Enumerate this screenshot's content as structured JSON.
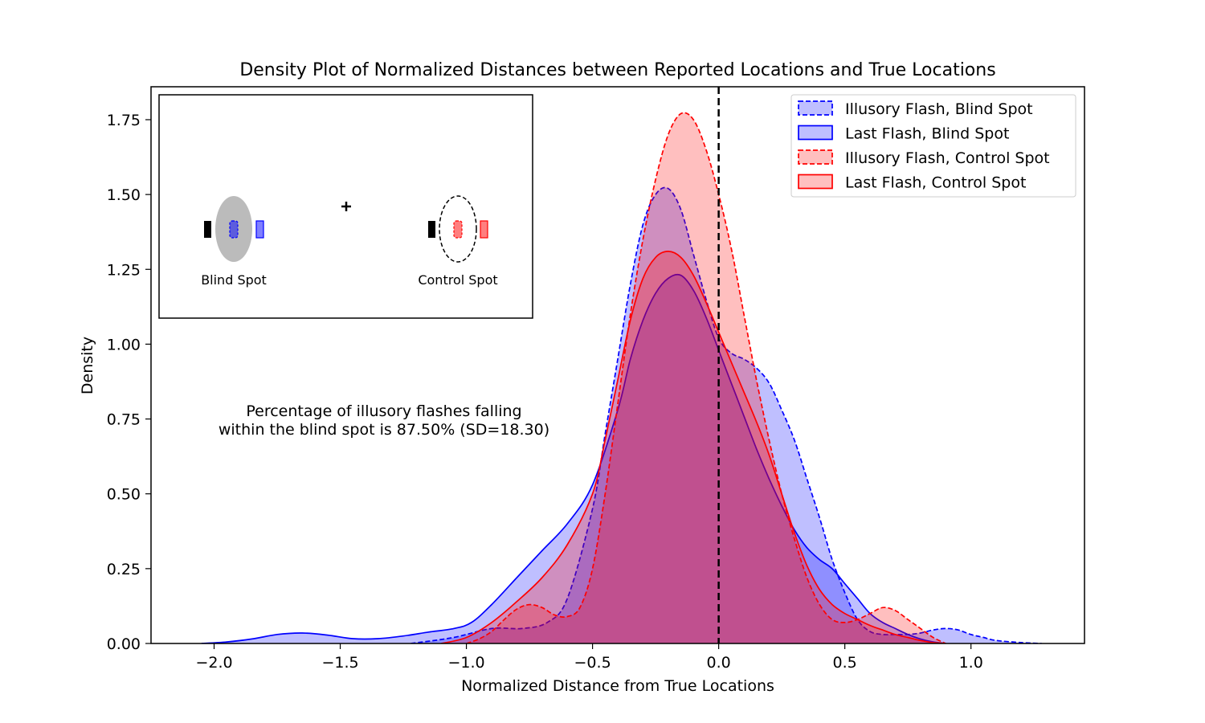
{
  "chart_data": {
    "type": "area",
    "title": "Density Plot of Normalized Distances between Reported Locations and True Locations",
    "xlabel": "Normalized Distance from True Locations",
    "ylabel": "Density",
    "xlim": [
      -2.25,
      1.45
    ],
    "ylim": [
      0,
      1.86
    ],
    "x_ticks": [
      -2.0,
      -1.5,
      -1.0,
      -0.5,
      0.0,
      0.5,
      1.0
    ],
    "x_tick_labels": [
      "−2.0",
      "−1.5",
      "−1.0",
      "−0.5",
      "0.0",
      "0.5",
      "1.0"
    ],
    "y_ticks": [
      0,
      0.25,
      0.5,
      0.75,
      1.0,
      1.25,
      1.5,
      1.75
    ],
    "y_tick_labels": [
      "0.00",
      "0.25",
      "0.50",
      "0.75",
      "1.00",
      "1.25",
      "1.50",
      "1.75"
    ],
    "grid": false,
    "legend_position": "top-right",
    "reference_line": {
      "x": 0.0,
      "style": "dashed",
      "color": "#000000"
    },
    "annotation": {
      "lines": [
        "Percentage of illusory flashes falling",
        "within the blind spot is 87.50% (SD=18.30)"
      ]
    },
    "series": [
      {
        "name": "Illusory Flash, Blind Spot",
        "color": "#0000ff",
        "line_style": "dashed",
        "x": [
          -1.22,
          -1.05,
          -0.9,
          -0.78,
          -0.68,
          -0.6,
          -0.5,
          -0.45,
          -0.4,
          -0.35,
          -0.3,
          -0.25,
          -0.2,
          -0.15,
          -0.1,
          -0.05,
          0.0,
          0.05,
          0.1,
          0.15,
          0.2,
          0.25,
          0.3,
          0.35,
          0.4,
          0.45,
          0.5,
          0.55,
          0.6,
          0.65,
          0.7,
          0.75,
          0.8,
          0.85,
          0.9,
          0.95,
          1.0,
          1.05,
          1.1,
          1.2,
          1.28
        ],
        "y": [
          0.0,
          0.02,
          0.05,
          0.05,
          0.07,
          0.15,
          0.45,
          0.7,
          0.95,
          1.2,
          1.4,
          1.5,
          1.52,
          1.45,
          1.3,
          1.15,
          1.02,
          0.97,
          0.95,
          0.92,
          0.87,
          0.78,
          0.68,
          0.55,
          0.42,
          0.28,
          0.17,
          0.08,
          0.04,
          0.03,
          0.03,
          0.03,
          0.035,
          0.045,
          0.05,
          0.045,
          0.03,
          0.02,
          0.01,
          0.003,
          0.0
        ]
      },
      {
        "name": "Last Flash, Blind Spot",
        "color": "#0000ff",
        "line_style": "solid",
        "x": [
          -2.05,
          -1.95,
          -1.85,
          -1.75,
          -1.65,
          -1.55,
          -1.45,
          -1.35,
          -1.25,
          -1.15,
          -1.05,
          -0.98,
          -0.9,
          -0.8,
          -0.7,
          -0.6,
          -0.5,
          -0.4,
          -0.35,
          -0.3,
          -0.25,
          -0.2,
          -0.15,
          -0.1,
          -0.05,
          0.0,
          0.05,
          0.1,
          0.15,
          0.2,
          0.25,
          0.3,
          0.35,
          0.4,
          0.45,
          0.5,
          0.55,
          0.6,
          0.65,
          0.7,
          0.75,
          0.8,
          0.85,
          0.9
        ],
        "y": [
          0.0,
          0.005,
          0.015,
          0.03,
          0.035,
          0.028,
          0.016,
          0.016,
          0.025,
          0.038,
          0.05,
          0.07,
          0.13,
          0.22,
          0.31,
          0.4,
          0.53,
          0.78,
          0.95,
          1.08,
          1.17,
          1.22,
          1.23,
          1.18,
          1.09,
          0.98,
          0.87,
          0.76,
          0.65,
          0.55,
          0.46,
          0.38,
          0.32,
          0.28,
          0.25,
          0.2,
          0.15,
          0.1,
          0.07,
          0.05,
          0.03,
          0.015,
          0.005,
          0.0
        ]
      },
      {
        "name": "Illusory Flash, Control Spot",
        "color": "#ff0000",
        "line_style": "dashed",
        "x": [
          -1.0,
          -0.95,
          -0.9,
          -0.85,
          -0.8,
          -0.75,
          -0.7,
          -0.65,
          -0.6,
          -0.55,
          -0.5,
          -0.45,
          -0.4,
          -0.35,
          -0.3,
          -0.25,
          -0.2,
          -0.15,
          -0.1,
          -0.05,
          0.0,
          0.05,
          0.1,
          0.15,
          0.2,
          0.25,
          0.3,
          0.35,
          0.4,
          0.45,
          0.5,
          0.55,
          0.6,
          0.65,
          0.7,
          0.75,
          0.8,
          0.85,
          0.9
        ],
        "y": [
          0.0,
          0.015,
          0.04,
          0.08,
          0.115,
          0.13,
          0.12,
          0.095,
          0.09,
          0.12,
          0.25,
          0.5,
          0.8,
          1.1,
          1.35,
          1.55,
          1.7,
          1.77,
          1.75,
          1.65,
          1.5,
          1.32,
          1.1,
          0.88,
          0.68,
          0.5,
          0.35,
          0.22,
          0.13,
          0.08,
          0.07,
          0.08,
          0.1,
          0.12,
          0.11,
          0.08,
          0.05,
          0.02,
          0.0
        ]
      },
      {
        "name": "Last Flash, Control Spot",
        "color": "#ff0000",
        "line_style": "solid",
        "x": [
          -1.1,
          -1.0,
          -0.9,
          -0.8,
          -0.7,
          -0.6,
          -0.5,
          -0.45,
          -0.4,
          -0.35,
          -0.3,
          -0.25,
          -0.2,
          -0.15,
          -0.1,
          -0.05,
          0.0,
          0.05,
          0.1,
          0.15,
          0.2,
          0.25,
          0.3,
          0.35,
          0.4,
          0.45,
          0.5,
          0.55,
          0.6,
          0.65,
          0.7,
          0.75,
          0.8,
          0.85,
          0.9
        ],
        "y": [
          0.0,
          0.02,
          0.07,
          0.14,
          0.22,
          0.33,
          0.5,
          0.68,
          0.88,
          1.08,
          1.22,
          1.29,
          1.31,
          1.29,
          1.23,
          1.14,
          1.04,
          0.94,
          0.84,
          0.74,
          0.63,
          0.5,
          0.37,
          0.26,
          0.18,
          0.13,
          0.1,
          0.08,
          0.06,
          0.045,
          0.03,
          0.02,
          0.01,
          0.003,
          0.0
        ]
      }
    ],
    "inset": {
      "left_label": "Blind Spot",
      "right_label": "Control Spot",
      "blind_spot_fill": "#bbbbbb",
      "marker_black": "#000000",
      "marker_blue": "#0000ff",
      "marker_red": "#ff0000"
    }
  }
}
